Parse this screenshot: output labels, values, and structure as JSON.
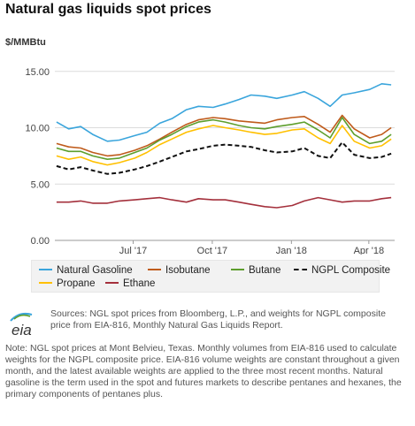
{
  "header": {
    "title": "Natural gas liquids spot prices",
    "unit": "$/MMBtu"
  },
  "footer": {
    "logo_text": "eia",
    "source": "Sources: NGL spot prices from Bloomberg, L.P., and weights for NGPL composite price from EIA-816, Monthly Natural Gas Liquids Report.",
    "note": "Note: NGL spot prices at Mont Belvieu, Texas. Monthly volumes from EIA-816 used to calculate weights for the NGPL composite price. EIA-816 volume weights are constant throughout a given month, and the latest available weights are applied to the three most recent months. Natural gasoline is the term used in the spot and futures markets to describe pentanes and hexanes, the primary components of pentanes plus."
  },
  "chart_data": {
    "type": "line",
    "ylabel": "$/MMBtu",
    "ylim": [
      0,
      16
    ],
    "yticks": [
      0,
      5,
      10,
      15
    ],
    "ytick_labels": [
      "0.00",
      "5.00",
      "10.00",
      "15.00"
    ],
    "xlim": [
      "2017-04-01",
      "2018-05-01"
    ],
    "xticks": [
      "2017-07-01",
      "2017-10-01",
      "2018-01-01",
      "2018-04-01"
    ],
    "xtick_labels": [
      "Jul '17",
      "Oct '17",
      "Jan '18",
      "Apr '18"
    ],
    "grid": "horizontal",
    "legend_position": "bottom",
    "x": [
      "2017-04-03",
      "2017-04-17",
      "2017-05-01",
      "2017-05-15",
      "2017-06-01",
      "2017-06-15",
      "2017-07-03",
      "2017-07-17",
      "2017-08-01",
      "2017-08-15",
      "2017-09-01",
      "2017-09-15",
      "2017-10-02",
      "2017-10-16",
      "2017-11-01",
      "2017-11-15",
      "2017-12-01",
      "2017-12-15",
      "2018-01-02",
      "2018-01-16",
      "2018-02-01",
      "2018-02-15",
      "2018-03-01",
      "2018-03-15",
      "2018-04-02",
      "2018-04-16",
      "2018-04-27"
    ],
    "series": [
      {
        "name": "Natural Gasoline",
        "color": "#3aa5dc",
        "style": "solid",
        "values": [
          10.5,
          9.9,
          10.1,
          9.4,
          8.8,
          8.9,
          9.3,
          9.6,
          10.4,
          10.8,
          11.6,
          11.9,
          11.8,
          12.1,
          12.5,
          12.9,
          12.8,
          12.6,
          12.9,
          13.2,
          12.6,
          11.9,
          12.9,
          13.1,
          13.4,
          13.9,
          13.8
        ]
      },
      {
        "name": "Isobutane",
        "color": "#bf5b1b",
        "style": "solid",
        "values": [
          8.6,
          8.3,
          8.2,
          7.8,
          7.5,
          7.6,
          8.0,
          8.4,
          9.0,
          9.6,
          10.3,
          10.7,
          10.9,
          10.8,
          10.6,
          10.5,
          10.4,
          10.7,
          10.9,
          11.0,
          10.3,
          9.6,
          11.1,
          9.9,
          9.1,
          9.4,
          10.0
        ]
      },
      {
        "name": "Butane",
        "color": "#5d9e2d",
        "style": "solid",
        "values": [
          8.2,
          7.9,
          7.9,
          7.5,
          7.2,
          7.3,
          7.8,
          8.2,
          8.9,
          9.4,
          10.1,
          10.5,
          10.7,
          10.5,
          10.2,
          10.0,
          9.9,
          10.1,
          10.3,
          10.5,
          9.8,
          9.1,
          10.9,
          9.4,
          8.6,
          8.8,
          9.4
        ]
      },
      {
        "name": "NGPL Composite",
        "color": "#111111",
        "style": "dashed",
        "values": [
          6.6,
          6.3,
          6.5,
          6.2,
          5.9,
          6.0,
          6.3,
          6.6,
          7.0,
          7.4,
          7.9,
          8.1,
          8.4,
          8.5,
          8.4,
          8.3,
          8.0,
          7.8,
          7.9,
          8.2,
          7.5,
          7.3,
          8.7,
          7.6,
          7.3,
          7.4,
          7.7
        ]
      },
      {
        "name": "Propane",
        "color": "#ffc000",
        "style": "solid",
        "values": [
          7.5,
          7.2,
          7.4,
          7.0,
          6.7,
          6.9,
          7.3,
          7.8,
          8.5,
          9.0,
          9.6,
          9.9,
          10.2,
          10.0,
          9.8,
          9.6,
          9.4,
          9.5,
          9.8,
          9.9,
          9.1,
          8.6,
          10.2,
          8.8,
          8.2,
          8.4,
          9.0
        ]
      },
      {
        "name": "Ethane",
        "color": "#a4303c",
        "style": "solid",
        "values": [
          3.4,
          3.4,
          3.5,
          3.3,
          3.3,
          3.5,
          3.6,
          3.7,
          3.8,
          3.6,
          3.4,
          3.7,
          3.6,
          3.6,
          3.4,
          3.2,
          3.0,
          2.9,
          3.1,
          3.5,
          3.8,
          3.6,
          3.4,
          3.5,
          3.5,
          3.7,
          3.8
        ]
      }
    ]
  }
}
